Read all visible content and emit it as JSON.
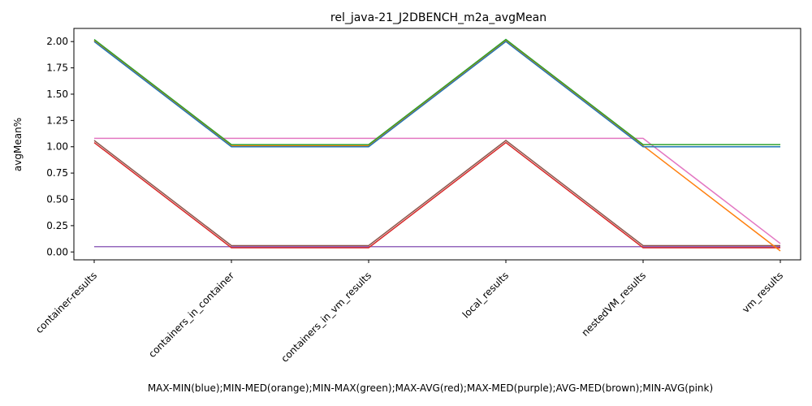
{
  "chart_data": {
    "type": "line",
    "title": "rel_java-21_J2DBENCH_m2a_avgMean",
    "xlabel": "MAX-MIN(blue);MIN-MED(orange);MIN-MAX(green);MAX-AVG(red);MAX-MED(purple);AVG-MED(brown);MIN-AVG(pink)",
    "ylabel": "avgMean%",
    "categories": [
      "container-results",
      "containers_in_container",
      "containers_in_vm_results",
      "local_results",
      "nestedVM_results",
      "vm_results"
    ],
    "ylim": [
      -0.075,
      2.125
    ],
    "yticks": [
      "0.00",
      "0.25",
      "0.50",
      "0.75",
      "1.00",
      "1.25",
      "1.50",
      "1.75",
      "2.00"
    ],
    "ytick_values": [
      0,
      0.25,
      0.5,
      0.75,
      1.0,
      1.25,
      1.5,
      1.75,
      2.0
    ],
    "grid": false,
    "series": [
      {
        "color": "#8c564b",
        "values": [
          1.06,
          0.06,
          0.06,
          1.06,
          0.06,
          0.06
        ]
      },
      {
        "color": "#9467bd",
        "values": [
          0.05,
          0.05,
          0.05,
          0.05,
          0.05,
          0.05
        ]
      },
      {
        "color": "#d62728",
        "values": [
          1.04,
          0.04,
          0.04,
          1.04,
          0.04,
          0.04
        ]
      },
      {
        "color": "#e377c2",
        "values": [
          1.08,
          1.08,
          1.08,
          1.08,
          1.08,
          0.08
        ]
      },
      {
        "color": "#ff7f0e",
        "values": [
          2.01,
          1.01,
          1.01,
          2.01,
          1.01,
          0.01
        ]
      },
      {
        "color": "#1f77b4",
        "values": [
          2.0,
          1.0,
          1.0,
          2.0,
          1.0,
          1.0
        ]
      },
      {
        "color": "#2ca02c",
        "values": [
          2.02,
          1.02,
          1.02,
          2.02,
          1.02,
          1.02
        ]
      }
    ]
  }
}
